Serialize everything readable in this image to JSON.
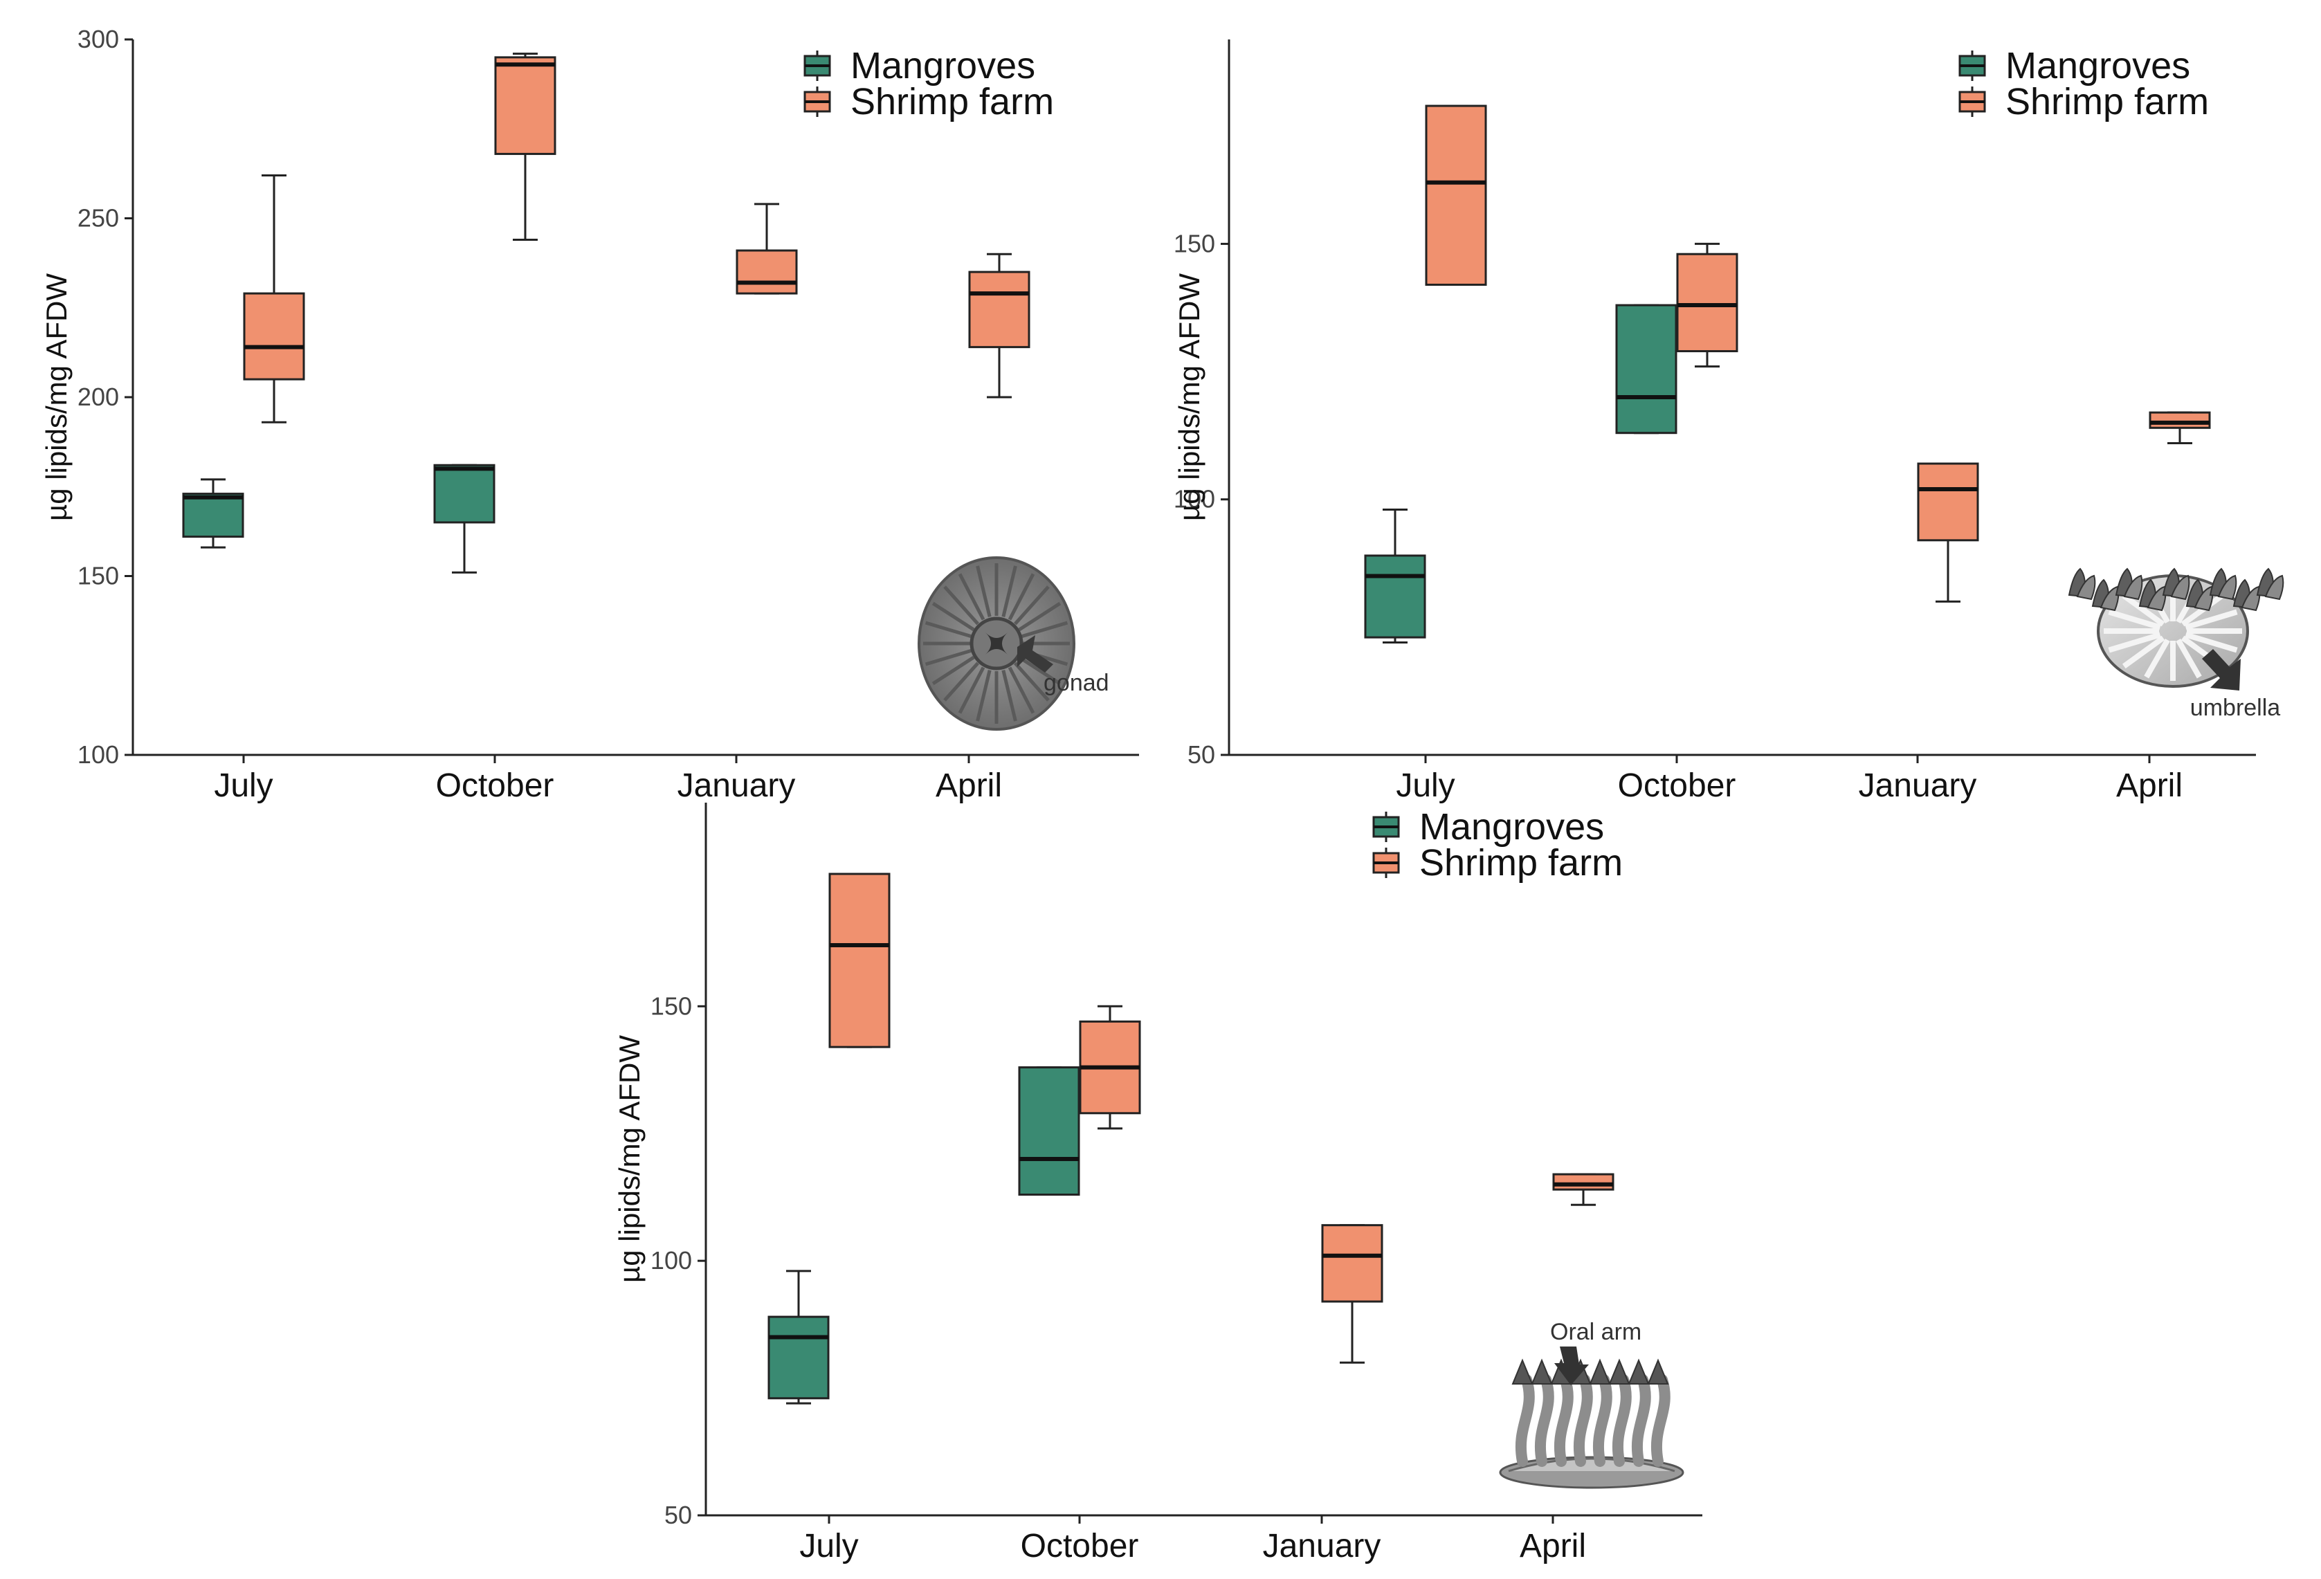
{
  "colors": {
    "Mangroves": "#3a8a72",
    "Shrimp farm": "#f0916f",
    "axis": "#222222"
  },
  "chart_data": [
    {
      "type": "box",
      "ylabel": "µg lipids/mg AFDW",
      "ylim": [
        100,
        300
      ],
      "yticks": [
        100,
        150,
        200,
        250,
        300
      ],
      "categories": [
        "July",
        "October",
        "January",
        "April"
      ],
      "legend": [
        "Mangroves",
        "Shrimp farm"
      ],
      "legend_position": "top-right",
      "annotation": "gonad",
      "illustration": "jellyfish-gonad-icon",
      "series": [
        {
          "name": "Mangroves",
          "boxes": [
            {
              "category": "July",
              "min": 158,
              "q1": 161,
              "median": 172,
              "q3": 173,
              "max": 177
            },
            {
              "category": "October",
              "min": 151,
              "q1": 165,
              "median": 180,
              "q3": 181,
              "max": 181
            },
            null,
            null
          ]
        },
        {
          "name": "Shrimp farm",
          "boxes": [
            {
              "category": "July",
              "min": 193,
              "q1": 205,
              "median": 214,
              "q3": 229,
              "max": 262
            },
            {
              "category": "October",
              "min": 244,
              "q1": 268,
              "median": 293,
              "q3": 295,
              "max": 296
            },
            {
              "category": "January",
              "min": 229,
              "q1": 229,
              "median": 232,
              "q3": 241,
              "max": 254
            },
            {
              "category": "April",
              "min": 200,
              "q1": 214,
              "median": 229,
              "q3": 235,
              "max": 240
            }
          ]
        }
      ]
    },
    {
      "type": "box",
      "ylabel": "µg lipids/mg AFDW",
      "ylim": [
        50,
        190
      ],
      "yticks": [
        50,
        100,
        150
      ],
      "categories": [
        "July",
        "October",
        "January",
        "April"
      ],
      "legend": [
        "Mangroves",
        "Shrimp farm"
      ],
      "legend_position": "top-right",
      "annotation": "umbrella",
      "illustration": "jellyfish-umbrella-icon",
      "series": [
        {
          "name": "Mangroves",
          "boxes": [
            {
              "category": "July",
              "min": 72,
              "q1": 73,
              "median": 85,
              "q3": 89,
              "max": 98
            },
            {
              "category": "October",
              "min": 113,
              "q1": 113,
              "median": 120,
              "q3": 138,
              "max": 138
            },
            null,
            null
          ]
        },
        {
          "name": "Shrimp farm",
          "boxes": [
            {
              "category": "July",
              "min": 142,
              "q1": 142,
              "median": 162,
              "q3": 177,
              "max": 177
            },
            {
              "category": "October",
              "min": 126,
              "q1": 129,
              "median": 138,
              "q3": 148,
              "max": 150
            },
            {
              "category": "January",
              "min": 80,
              "q1": 92,
              "median": 102,
              "q3": 107,
              "max": 107
            },
            {
              "category": "April",
              "min": 111,
              "q1": 114,
              "median": 115,
              "q3": 117,
              "max": 117
            }
          ]
        }
      ]
    },
    {
      "type": "box",
      "ylabel": "µg lipids/mg AFDW",
      "ylim": [
        50,
        190
      ],
      "yticks": [
        50,
        100,
        150
      ],
      "categories": [
        "July",
        "October",
        "January",
        "April"
      ],
      "legend": [
        "Mangroves",
        "Shrimp farm"
      ],
      "legend_position": "top-right",
      "annotation": "Oral arm",
      "illustration": "jellyfish-oral-arm-icon",
      "series": [
        {
          "name": "Mangroves",
          "boxes": [
            {
              "category": "July",
              "min": 72,
              "q1": 73,
              "median": 85,
              "q3": 89,
              "max": 98
            },
            {
              "category": "October",
              "min": 113,
              "q1": 113,
              "median": 120,
              "q3": 138,
              "max": 138
            },
            null,
            null
          ]
        },
        {
          "name": "Shrimp farm",
          "boxes": [
            {
              "category": "July",
              "min": 142,
              "q1": 142,
              "median": 162,
              "q3": 176,
              "max": 176
            },
            {
              "category": "October",
              "min": 126,
              "q1": 129,
              "median": 138,
              "q3": 147,
              "max": 150
            },
            {
              "category": "January",
              "min": 80,
              "q1": 92,
              "median": 101,
              "q3": 107,
              "max": 107
            },
            {
              "category": "April",
              "min": 111,
              "q1": 114,
              "median": 115,
              "q3": 117,
              "max": 117
            }
          ]
        }
      ]
    }
  ]
}
